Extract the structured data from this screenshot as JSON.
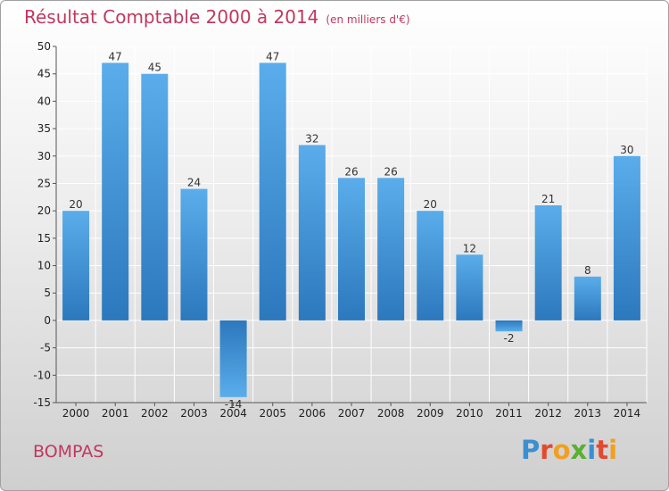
{
  "chart_data": {
    "type": "bar",
    "title": "Résultat Comptable 2000 à 2014",
    "subtitle": "(en milliers d'€)",
    "categories": [
      "2000",
      "2001",
      "2002",
      "2003",
      "2004",
      "2005",
      "2006",
      "2007",
      "2008",
      "2009",
      "2010",
      "2011",
      "2012",
      "2013",
      "2014"
    ],
    "values": [
      20,
      47,
      45,
      24,
      -14,
      47,
      32,
      26,
      26,
      20,
      12,
      -2,
      21,
      8,
      30
    ],
    "ylim": [
      -15,
      50
    ],
    "yticks": [
      -15,
      -10,
      -5,
      0,
      5,
      10,
      15,
      20,
      25,
      30,
      35,
      40,
      45,
      50
    ],
    "grid": true,
    "bar_color": "#3d8fd4",
    "bar_color_light": "#5aadea",
    "bar_color_dark": "#2c78bd"
  },
  "town": "BOMPAS",
  "logo": {
    "text": "Proxiti",
    "letters": [
      {
        "ch": "P",
        "color": "#3a8fd0"
      },
      {
        "ch": "r",
        "color": "#e24a2f"
      },
      {
        "ch": "o",
        "color": "#f0a020"
      },
      {
        "ch": "x",
        "color": "#5ab030"
      },
      {
        "ch": "i",
        "color": "#3a8fd0"
      },
      {
        "ch": "t",
        "color": "#e24a2f"
      },
      {
        "ch": "i",
        "color": "#f0a020"
      }
    ]
  }
}
